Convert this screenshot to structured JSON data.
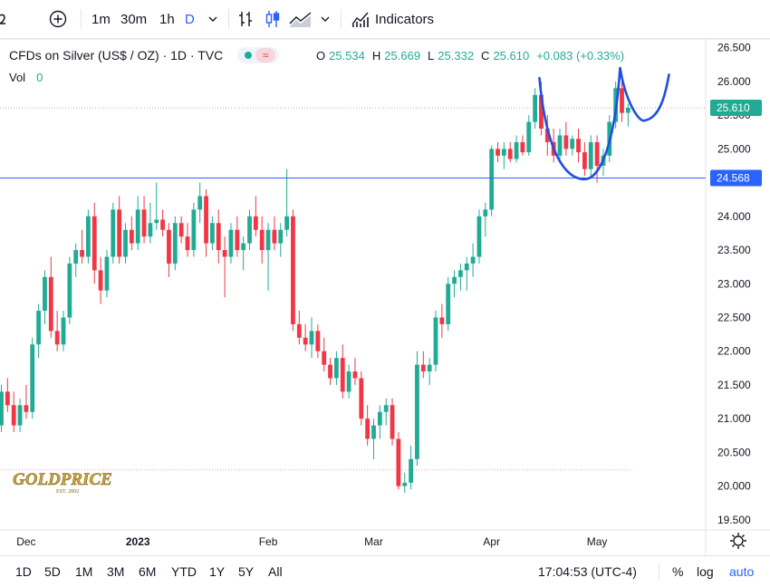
{
  "toolbar": {
    "intervals": [
      "1m",
      "30m",
      "1h",
      "D"
    ],
    "active_interval": "D",
    "indicators_label": "Indicators"
  },
  "legend": {
    "title": "CFDs on Silver (US$ / OZ) · 1D · TVC",
    "ohlc": [
      {
        "label": "O",
        "value": "25.534"
      },
      {
        "label": "H",
        "value": "25.669"
      },
      {
        "label": "L",
        "value": "25.332"
      },
      {
        "label": "C",
        "value": "25.610"
      }
    ],
    "change": "+0.083 (+0.33%)",
    "vol_label": "Vol",
    "vol_value": "0"
  },
  "watermark": {
    "text": "GOLDPRICE",
    "sub": "EST. 2002"
  },
  "bottom": {
    "ranges": [
      "1D",
      "5D",
      "1M",
      "3M",
      "6M",
      "YTD",
      "1Y",
      "5Y",
      "All"
    ],
    "clock": "17:04:53 (UTC-4)",
    "percent": "%",
    "log": "log",
    "auto": "auto"
  },
  "colors": {
    "up": "#22ab94",
    "down": "#f23645",
    "hline": "#2962ff",
    "curve": "#1e4fe0",
    "last": "#22ab94"
  },
  "chart_data": {
    "type": "candlestick",
    "title": "CFDs on Silver (US$ / OZ) · 1D · TVC",
    "ylim": [
      19.35,
      26.63
    ],
    "y_ticks": [
      "19.500",
      "20.000",
      "20.500",
      "21.000",
      "21.500",
      "22.000",
      "22.500",
      "23.000",
      "23.500",
      "24.000",
      "24.500",
      "25.000",
      "25.500",
      "26.000",
      "26.500"
    ],
    "x_ticks": [
      {
        "label": "Dec",
        "bold": false,
        "index": 4
      },
      {
        "label": "2023",
        "bold": true,
        "index": 22
      },
      {
        "label": "Feb",
        "bold": false,
        "index": 43
      },
      {
        "label": "Mar",
        "bold": false,
        "index": 60
      },
      {
        "label": "Apr",
        "bold": false,
        "index": 79
      },
      {
        "label": "May",
        "bold": false,
        "index": 96
      }
    ],
    "candles": [
      [
        20.9,
        21.5,
        20.8,
        21.4
      ],
      [
        21.4,
        21.6,
        21.1,
        21.2
      ],
      [
        21.2,
        21.4,
        20.8,
        20.9
      ],
      [
        20.9,
        21.3,
        20.8,
        21.2
      ],
      [
        21.2,
        21.5,
        21.0,
        21.1
      ],
      [
        21.1,
        22.2,
        21.0,
        22.1
      ],
      [
        22.1,
        22.7,
        21.9,
        22.6
      ],
      [
        22.6,
        23.2,
        22.4,
        23.1
      ],
      [
        23.1,
        23.4,
        22.2,
        22.3
      ],
      [
        22.3,
        22.6,
        22.0,
        22.1
      ],
      [
        22.1,
        22.6,
        22.0,
        22.5
      ],
      [
        22.5,
        23.4,
        22.4,
        23.3
      ],
      [
        23.3,
        23.6,
        23.1,
        23.5
      ],
      [
        23.5,
        23.8,
        23.3,
        23.4
      ],
      [
        23.4,
        24.1,
        23.3,
        24.0
      ],
      [
        24.0,
        24.2,
        23.0,
        23.2
      ],
      [
        23.2,
        23.4,
        22.7,
        22.9
      ],
      [
        22.9,
        23.5,
        22.8,
        23.4
      ],
      [
        23.4,
        24.2,
        23.3,
        24.1
      ],
      [
        24.1,
        24.3,
        23.3,
        23.4
      ],
      [
        23.4,
        23.9,
        23.3,
        23.8
      ],
      [
        23.8,
        24.0,
        23.5,
        23.6
      ],
      [
        23.6,
        24.3,
        23.5,
        24.1
      ],
      [
        24.1,
        24.3,
        23.6,
        23.7
      ],
      [
        23.7,
        24.2,
        23.6,
        23.9
      ],
      [
        23.9,
        24.5,
        23.8,
        23.95
      ],
      [
        23.95,
        24.1,
        23.7,
        23.8
      ],
      [
        23.8,
        23.9,
        23.1,
        23.3
      ],
      [
        23.3,
        24.0,
        23.2,
        23.9
      ],
      [
        23.9,
        24.0,
        23.6,
        23.7
      ],
      [
        23.7,
        23.9,
        23.4,
        23.5
      ],
      [
        23.5,
        24.2,
        23.4,
        24.1
      ],
      [
        24.1,
        24.5,
        23.9,
        24.3
      ],
      [
        24.3,
        24.4,
        23.4,
        23.6
      ],
      [
        23.6,
        24.0,
        23.5,
        23.9
      ],
      [
        23.9,
        24.1,
        23.3,
        23.5
      ],
      [
        23.5,
        23.7,
        22.8,
        23.4
      ],
      [
        23.4,
        23.9,
        23.3,
        23.8
      ],
      [
        23.8,
        24.0,
        23.4,
        23.5
      ],
      [
        23.5,
        23.7,
        23.2,
        23.6
      ],
      [
        23.6,
        24.1,
        23.5,
        24.0
      ],
      [
        24.0,
        24.3,
        23.7,
        23.8
      ],
      [
        23.8,
        24.0,
        23.3,
        23.5
      ],
      [
        23.5,
        23.9,
        22.9,
        23.8
      ],
      [
        23.8,
        24.0,
        23.5,
        23.6
      ],
      [
        23.6,
        23.9,
        23.4,
        23.8
      ],
      [
        23.8,
        24.7,
        23.7,
        24.0
      ],
      [
        24.0,
        24.1,
        22.3,
        22.4
      ],
      [
        22.4,
        22.6,
        22.1,
        22.2
      ],
      [
        22.2,
        22.4,
        22.0,
        22.1
      ],
      [
        22.1,
        22.5,
        21.9,
        22.3
      ],
      [
        22.3,
        22.4,
        21.9,
        22.0
      ],
      [
        22.0,
        22.2,
        21.7,
        21.8
      ],
      [
        21.8,
        21.9,
        21.5,
        21.6
      ],
      [
        21.6,
        22.0,
        21.5,
        21.9
      ],
      [
        21.9,
        22.1,
        21.3,
        21.4
      ],
      [
        21.4,
        21.8,
        21.3,
        21.7
      ],
      [
        21.7,
        21.9,
        21.5,
        21.6
      ],
      [
        21.6,
        21.7,
        20.9,
        21.0
      ],
      [
        21.0,
        21.2,
        20.6,
        20.7
      ],
      [
        20.7,
        21.0,
        20.4,
        20.9
      ],
      [
        20.9,
        21.2,
        20.7,
        21.1
      ],
      [
        21.1,
        21.3,
        20.9,
        21.2
      ],
      [
        21.2,
        21.3,
        20.6,
        20.7
      ],
      [
        20.7,
        20.8,
        19.95,
        20.0
      ],
      [
        20.0,
        20.2,
        19.9,
        20.05
      ],
      [
        20.05,
        20.6,
        19.95,
        20.4
      ],
      [
        20.4,
        22.0,
        20.3,
        21.8
      ],
      [
        21.8,
        22.0,
        21.6,
        21.7
      ],
      [
        21.7,
        21.9,
        21.5,
        21.8
      ],
      [
        21.8,
        22.6,
        21.7,
        22.5
      ],
      [
        22.5,
        22.7,
        22.2,
        22.4
      ],
      [
        22.4,
        23.1,
        22.3,
        23.0
      ],
      [
        23.0,
        23.2,
        22.8,
        23.1
      ],
      [
        23.1,
        23.3,
        22.9,
        23.2
      ],
      [
        23.2,
        23.4,
        22.9,
        23.3
      ],
      [
        23.3,
        23.6,
        23.1,
        23.4
      ],
      [
        23.4,
        24.1,
        23.3,
        24.0
      ],
      [
        24.0,
        24.2,
        23.7,
        24.1
      ],
      [
        24.1,
        25.05,
        24.0,
        25.0
      ],
      [
        25.0,
        25.1,
        24.8,
        24.9
      ],
      [
        24.9,
        25.1,
        24.7,
        25.0
      ],
      [
        25.0,
        25.1,
        24.8,
        24.85
      ],
      [
        24.85,
        25.2,
        24.8,
        25.1
      ],
      [
        25.1,
        25.2,
        24.9,
        24.95
      ],
      [
        24.95,
        25.5,
        24.9,
        25.4
      ],
      [
        25.4,
        25.9,
        25.3,
        25.8
      ],
      [
        25.8,
        26.0,
        25.2,
        25.3
      ],
      [
        25.3,
        25.5,
        24.9,
        25.1
      ],
      [
        25.1,
        25.3,
        24.8,
        24.9
      ],
      [
        24.9,
        25.3,
        24.8,
        25.2
      ],
      [
        25.2,
        25.4,
        24.9,
        25.0
      ],
      [
        25.0,
        25.2,
        24.9,
        25.15
      ],
      [
        25.15,
        25.3,
        24.8,
        24.95
      ],
      [
        24.95,
        25.1,
        24.6,
        24.7
      ],
      [
        24.7,
        25.2,
        24.6,
        25.1
      ],
      [
        25.1,
        25.2,
        24.5,
        24.75
      ],
      [
        24.75,
        25.0,
        24.6,
        24.9
      ],
      [
        24.9,
        25.5,
        24.8,
        25.4
      ],
      [
        25.4,
        26.0,
        25.3,
        25.9
      ],
      [
        25.9,
        26.1,
        25.4,
        25.534
      ],
      [
        25.534,
        25.669,
        25.332,
        25.61
      ]
    ],
    "horizontal_line": {
      "value": 24.568,
      "label": "24.568"
    },
    "last_price": {
      "value": 25.61,
      "label": "25.610"
    },
    "dotted_line_value": 20.24
  }
}
